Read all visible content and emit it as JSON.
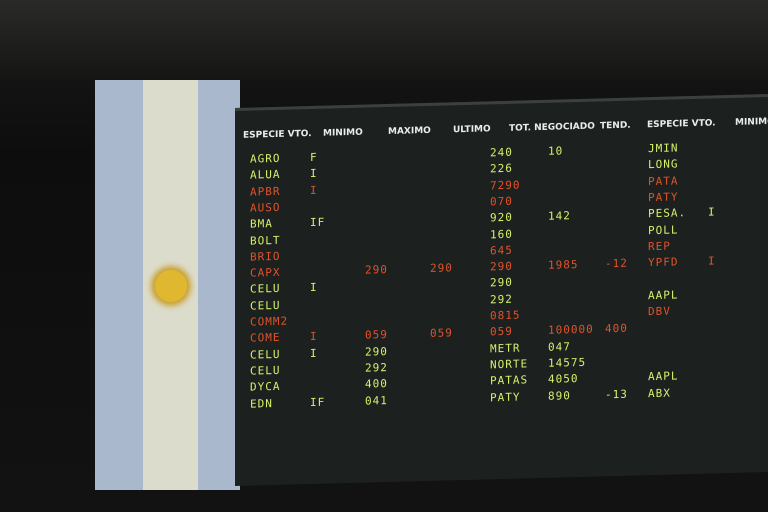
{
  "board": {
    "headers": {
      "ticker": "ESPECIE VTO.",
      "minimo": "MINIMO",
      "maximo": "MAXIMO",
      "ultimo": "ULTIMO",
      "negociado": "TOT. NEGOCIADO",
      "tend": "TEND.",
      "ticker2": "ESPECIE VTO.",
      "minimo2": "MINIMO"
    },
    "rows": [
      {
        "color": "green",
        "cells": {
          "ticker": "AGRO",
          "vto": "F",
          "ultimo": "240",
          "negociado": "10",
          "ticker2": "JMIN"
        }
      },
      {
        "color": "green",
        "cells": {
          "ticker": "ALUA",
          "vto": "I",
          "ultimo": "226",
          "ticker2": "LONG"
        }
      },
      {
        "color": "orange",
        "cells": {
          "ticker": "APBR",
          "vto": "I",
          "ultimo": "7290",
          "ticker2": "PATA"
        }
      },
      {
        "color": "orange",
        "cells": {
          "ticker": "AUSO",
          "ultimo": "070",
          "ticker2": "PATY"
        }
      },
      {
        "color": "green",
        "cells": {
          "ticker": "BMA",
          "vto": "IF",
          "ultimo": "920",
          "negociado": "142",
          "ticker2": "PESA.",
          "vto2": "I"
        }
      },
      {
        "color": "green",
        "cells": {
          "ticker": "BOLT",
          "ultimo": "160",
          "ticker2": "POLL"
        }
      },
      {
        "color": "orange",
        "cells": {
          "ticker": "BRIO",
          "ultimo": "645",
          "ticker2": "REP"
        }
      },
      {
        "color": "orange",
        "cells": {
          "ticker": "CAPX",
          "minimo": "290",
          "maximo": "290",
          "ultimo": "290",
          "negociado": "1985",
          "tend": "-12",
          "ticker2": "YPFD",
          "vto2": "I"
        }
      },
      {
        "color": "green",
        "cells": {
          "ticker": "CELU",
          "vto": "I",
          "ultimo": "290"
        }
      },
      {
        "color": "green",
        "cells": {
          "ticker": "CELU",
          "ultimo": "292",
          "ticker2": "AAPL"
        }
      },
      {
        "color": "orange",
        "cells": {
          "ticker": "COMM2",
          "ultimo": "0815",
          "ticker2": "DBV"
        }
      },
      {
        "color": "orange",
        "cells": {
          "ticker": "COME",
          "vto": "I",
          "minimo": "059",
          "maximo": "059",
          "ultimo": "059",
          "negociado": "100000",
          "tend": "400"
        }
      },
      {
        "color": "green",
        "cells": {
          "ticker": "CELU",
          "vto": "I",
          "minimo": "290",
          "ultimo": "METR",
          "negociado": "047"
        }
      },
      {
        "color": "green",
        "cells": {
          "ticker": "CELU",
          "minimo": "292",
          "ultimo": "NORTE",
          "negociado": "14575"
        }
      },
      {
        "color": "green",
        "cells": {
          "ticker": "DYCA",
          "minimo": "400",
          "ultimo": "PATAS",
          "negociado": "4050",
          "ticker2": "AAPL"
        }
      },
      {
        "color": "green",
        "cells": {
          "ticker": "EDN",
          "vto": "IF",
          "minimo": "041",
          "ultimo": "PATY",
          "negociado": "890",
          "tend": "-13",
          "ticker2": "ABX"
        }
      }
    ]
  }
}
